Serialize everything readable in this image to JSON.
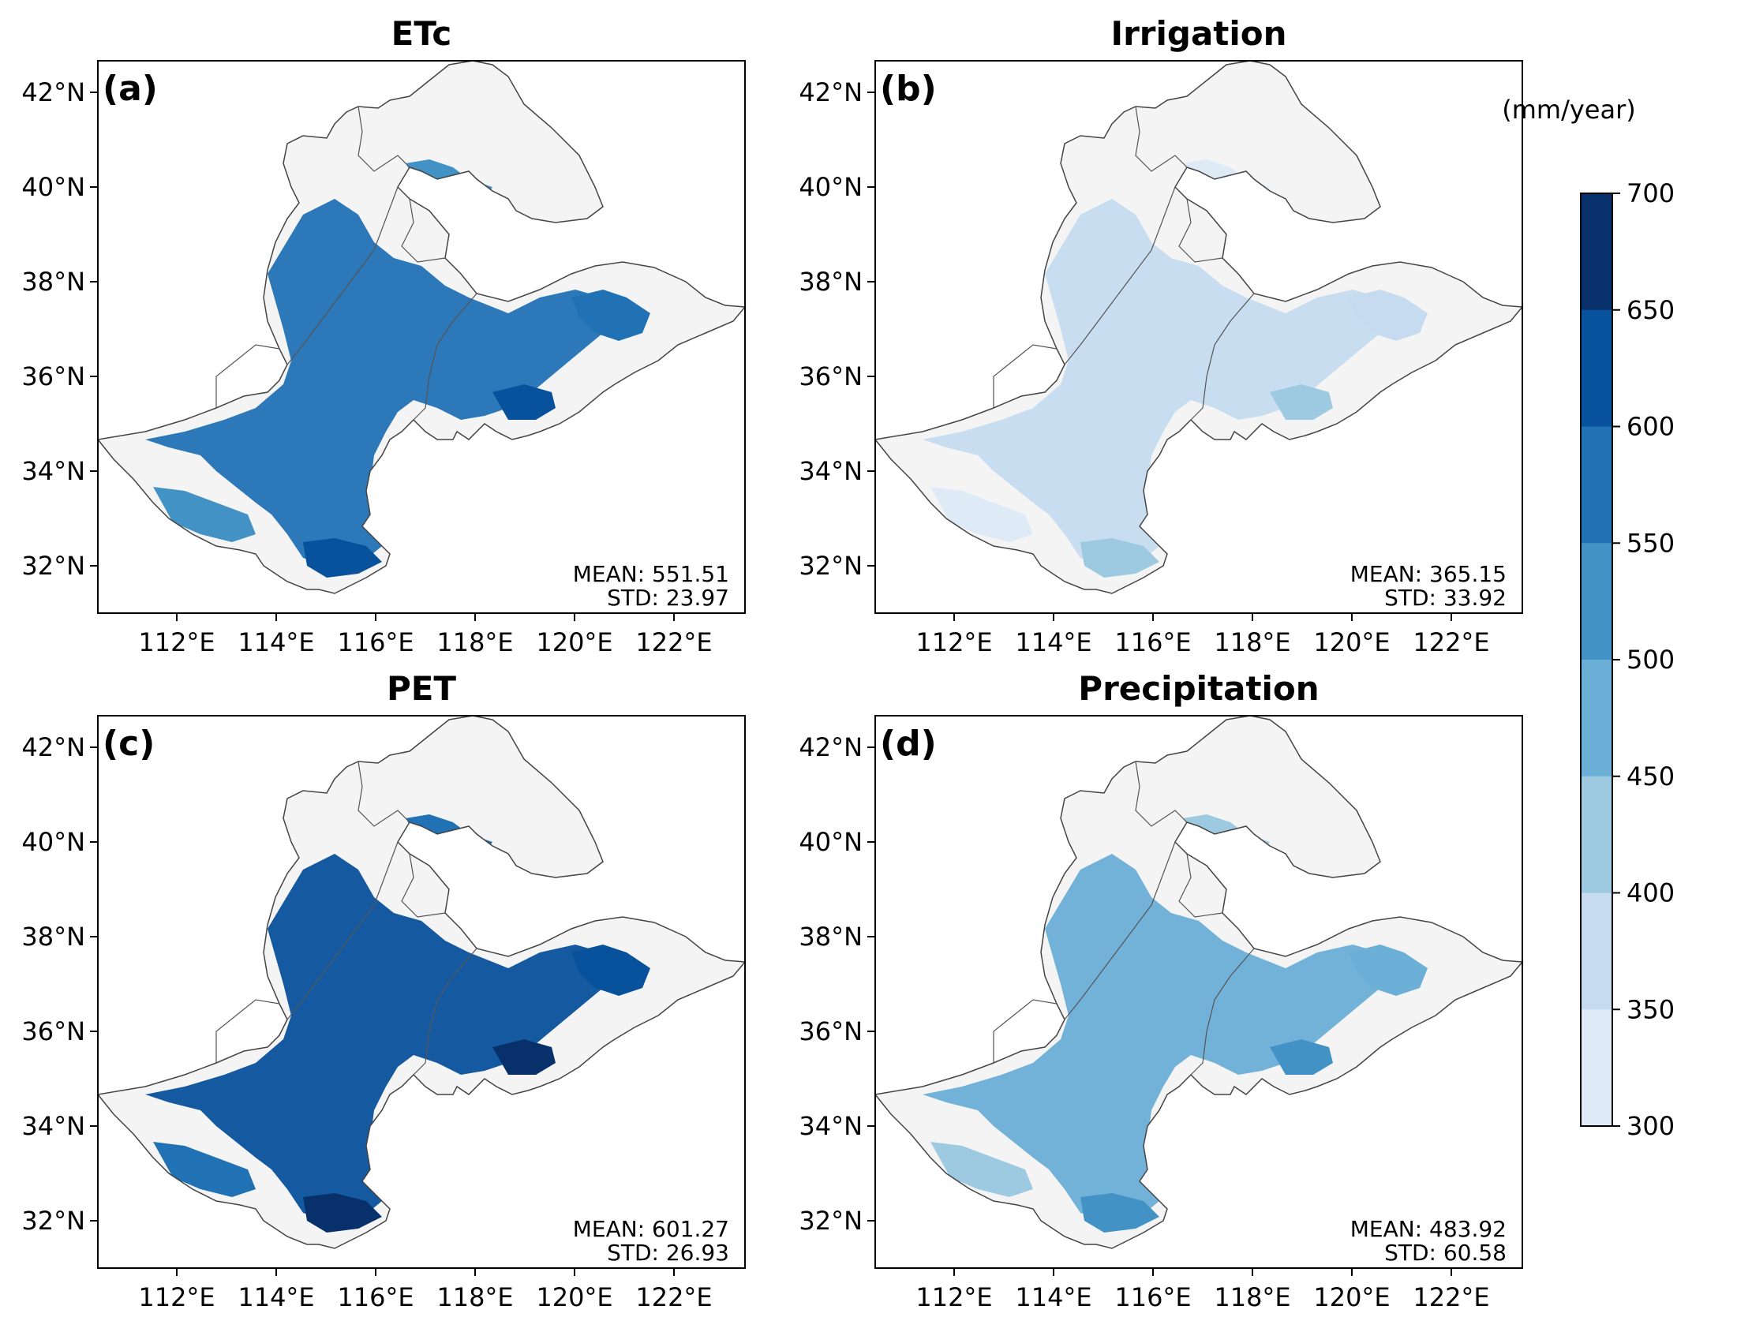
{
  "figure": {
    "colorbar": {
      "unit_label": "(mm/year)",
      "ticks": [
        "700",
        "650",
        "600",
        "550",
        "500",
        "450",
        "400",
        "350",
        "300"
      ],
      "colors": [
        "#08306b",
        "#08519c",
        "#2171b5",
        "#4292c6",
        "#6baed6",
        "#9ecae1",
        "#c6dbef",
        "#deebf7"
      ],
      "range": [
        300,
        700
      ],
      "step": 50
    },
    "lat_ticks": [
      "42°N",
      "40°N",
      "38°N",
      "36°N",
      "34°N",
      "32°N"
    ],
    "lon_ticks": [
      "112°E",
      "114°E",
      "116°E",
      "118°E",
      "120°E",
      "122°E"
    ],
    "panels": [
      {
        "label": "(a)",
        "title": "ETc",
        "mean": "MEAN: 551.51",
        "std": "STD: 23.97",
        "mean_value": 551.51
      },
      {
        "label": "(b)",
        "title": "Irrigation",
        "mean": "MEAN: 365.15",
        "std": "STD: 33.92",
        "mean_value": 365.15
      },
      {
        "label": "(c)",
        "title": "PET",
        "mean": "MEAN: 601.27",
        "std": "STD: 26.93",
        "mean_value": 601.27
      },
      {
        "label": "(d)",
        "title": "Precipitation",
        "mean": "MEAN: 483.92",
        "std": "STD: 60.58",
        "mean_value": 483.92
      }
    ]
  }
}
